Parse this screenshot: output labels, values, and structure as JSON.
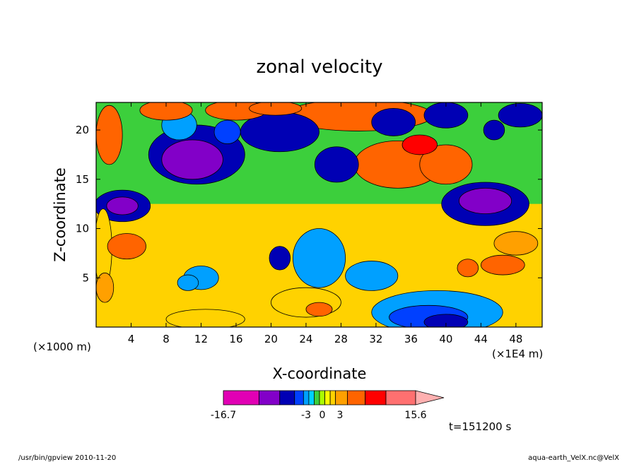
{
  "chart_data": {
    "type": "heatmap",
    "title": "zonal velocity",
    "xlabel": "X-coordinate",
    "ylabel": "Z-coordinate",
    "x_unit_left": "(×1000 m)",
    "x_unit_right": "(×1E4 m)",
    "xlim": [
      0,
      51
    ],
    "ylim": [
      0,
      22.8
    ],
    "xticks": [
      4,
      8,
      12,
      16,
      20,
      24,
      28,
      32,
      36,
      40,
      44,
      48
    ],
    "yticks": [
      5,
      10,
      15,
      20
    ],
    "colorbar": {
      "min_label": "-16.7",
      "max_label": "15.6",
      "tick_labels": [
        "-3",
        "0",
        "3"
      ],
      "colors": [
        "#e100b4",
        "#8200c8",
        "#0000b4",
        "#0040ff",
        "#00a0ff",
        "#00d0ff",
        "#3ccf3c",
        "#aaff00",
        "#ffff00",
        "#ffd200",
        "#ffa000",
        "#ff6400",
        "#ff0000",
        "#ff7070",
        "#ffb0b0"
      ]
    },
    "field_levels_note": "",
    "blobs": [
      {
        "cx": 11.5,
        "cz": 17.5,
        "rx": 5.5,
        "rz": 3.0,
        "level": 2
      },
      {
        "cx": 11.0,
        "cz": 17.0,
        "rx": 3.5,
        "rz": 2.0,
        "level": 1
      },
      {
        "cx": 3.0,
        "cz": 12.3,
        "rx": 3.2,
        "rz": 1.6,
        "level": 2
      },
      {
        "cx": 3.0,
        "cz": 12.3,
        "rx": 1.8,
        "rz": 0.9,
        "level": 1
      },
      {
        "cx": 44.5,
        "cz": 12.5,
        "rx": 5.0,
        "rz": 2.2,
        "level": 2
      },
      {
        "cx": 44.5,
        "cz": 12.8,
        "rx": 3.0,
        "rz": 1.3,
        "level": 1
      },
      {
        "cx": 21.0,
        "cz": 19.8,
        "rx": 4.5,
        "rz": 2.0,
        "level": 2
      },
      {
        "cx": 27.5,
        "cz": 16.5,
        "rx": 2.5,
        "rz": 1.8,
        "level": 2
      },
      {
        "cx": 34.0,
        "cz": 20.8,
        "rx": 2.5,
        "rz": 1.4,
        "level": 2
      },
      {
        "cx": 40.0,
        "cz": 21.5,
        "rx": 2.5,
        "rz": 1.3,
        "level": 2
      },
      {
        "cx": 48.5,
        "cz": 21.5,
        "rx": 2.5,
        "rz": 1.2,
        "level": 2
      },
      {
        "cx": 45.5,
        "cz": 20.0,
        "rx": 1.2,
        "rz": 1.0,
        "level": 2
      },
      {
        "cx": 25.5,
        "cz": 7.0,
        "rx": 3.0,
        "rz": 3.0,
        "level": 4
      },
      {
        "cx": 31.5,
        "cz": 5.2,
        "rx": 3.0,
        "rz": 1.5,
        "level": 4
      },
      {
        "cx": 39.0,
        "cz": 1.5,
        "rx": 7.5,
        "rz": 2.2,
        "level": 4
      },
      {
        "cx": 40.0,
        "cz": 0.5,
        "rx": 2.5,
        "rz": 0.8,
        "level": 2
      },
      {
        "cx": 12.0,
        "cz": 5.0,
        "rx": 2.0,
        "rz": 1.2,
        "level": 4
      },
      {
        "cx": 9.5,
        "cz": 20.5,
        "rx": 2.0,
        "rz": 1.5,
        "level": 4
      },
      {
        "cx": 15.0,
        "cz": 19.8,
        "rx": 1.5,
        "rz": 1.2,
        "level": 3
      },
      {
        "cx": 21.0,
        "cz": 7.0,
        "rx": 1.2,
        "rz": 1.2,
        "level": 2
      },
      {
        "cx": 10.5,
        "cz": 4.5,
        "rx": 1.2,
        "rz": 0.8,
        "level": 4
      },
      {
        "cx": 38.0,
        "cz": 1.0,
        "rx": 4.5,
        "rz": 1.2,
        "level": 3
      },
      {
        "cx": 34.5,
        "cz": 16.5,
        "rx": 5.0,
        "rz": 2.4,
        "level": 11
      },
      {
        "cx": 30.0,
        "cz": 21.5,
        "rx": 8.5,
        "rz": 1.6,
        "level": 11
      },
      {
        "cx": 16.0,
        "cz": 22.0,
        "rx": 3.5,
        "rz": 1.0,
        "level": 11
      },
      {
        "cx": 20.5,
        "cz": 22.2,
        "rx": 3.0,
        "rz": 0.7,
        "level": 11
      },
      {
        "cx": 8.0,
        "cz": 22.0,
        "rx": 3.0,
        "rz": 1.0,
        "level": 11
      },
      {
        "cx": 1.5,
        "cz": 19.5,
        "rx": 1.5,
        "rz": 3.0,
        "level": 11
      },
      {
        "cx": 40.0,
        "cz": 16.5,
        "rx": 3.0,
        "rz": 2.0,
        "level": 11
      },
      {
        "cx": 37.0,
        "cz": 18.5,
        "rx": 2.0,
        "rz": 1.0,
        "level": 12
      },
      {
        "cx": 3.5,
        "cz": 8.2,
        "rx": 2.2,
        "rz": 1.3,
        "level": 11
      },
      {
        "cx": 46.5,
        "cz": 6.3,
        "rx": 2.5,
        "rz": 1.0,
        "level": 11
      },
      {
        "cx": 42.5,
        "cz": 6.0,
        "rx": 1.2,
        "rz": 0.9,
        "level": 11
      },
      {
        "cx": 48.0,
        "cz": 8.5,
        "rx": 2.5,
        "rz": 1.2,
        "level": 10
      },
      {
        "cx": 12.5,
        "cz": 0.8,
        "rx": 4.5,
        "rz": 1.0,
        "level": 9
      },
      {
        "cx": 24.0,
        "cz": 2.5,
        "rx": 4.0,
        "rz": 1.5,
        "level": 9
      },
      {
        "cx": 25.5,
        "cz": 1.8,
        "rx": 1.5,
        "rz": 0.7,
        "level": 11
      },
      {
        "cx": 0.8,
        "cz": 8.0,
        "rx": 1.0,
        "rz": 4.0,
        "level": 9
      },
      {
        "cx": 1.0,
        "cz": 4.0,
        "rx": 1.0,
        "rz": 1.5,
        "level": 10
      }
    ]
  },
  "footer": {
    "time_label": "t=151200 s",
    "left_note": "/usr/bin/gpview 2010-11-20",
    "right_note": "aqua-earth_VelX.nc@VelX"
  }
}
